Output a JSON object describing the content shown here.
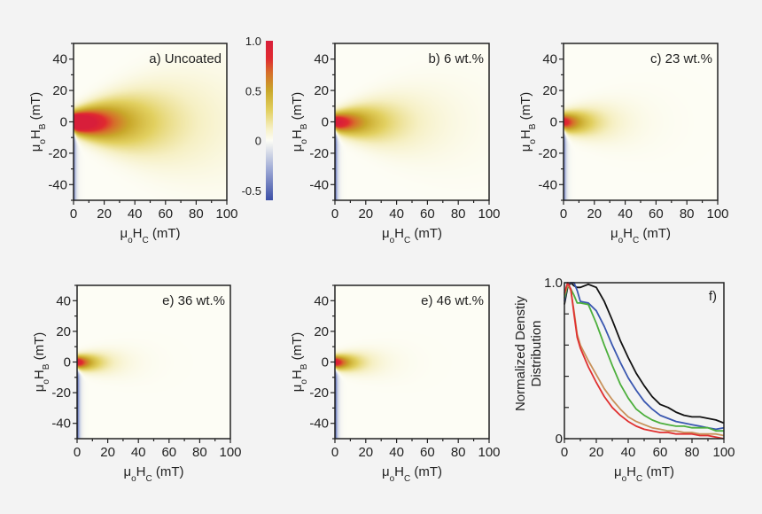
{
  "chart_data": [
    {
      "type": "heatmap",
      "panel": "a",
      "title": "a) Uncoated",
      "xlim": [
        0,
        100
      ],
      "ylim": [
        -50,
        50
      ],
      "xticks": [
        0,
        20,
        40,
        60,
        80,
        100
      ],
      "yticks": [
        40,
        20,
        0,
        -20,
        -40
      ],
      "xlabel": [
        "μ",
        "o",
        "H",
        "C",
        " (mT)"
      ],
      "ylabel": [
        "μ",
        "o",
        "H",
        "B",
        " (mT)"
      ]
    },
    {
      "type": "heatmap",
      "panel": "b",
      "title": "b) 6 wt.%",
      "xlim": [
        0,
        100
      ],
      "ylim": [
        -50,
        50
      ],
      "xticks": [
        0,
        20,
        40,
        60,
        80,
        100
      ],
      "yticks": [
        40,
        20,
        0,
        -20,
        -40
      ],
      "xlabel": [
        "μ",
        "o",
        "H",
        "C",
        " (mT)"
      ],
      "ylabel": [
        "μ",
        "o",
        "H",
        "B",
        " (mT)"
      ]
    },
    {
      "type": "heatmap",
      "panel": "c",
      "title": "c) 23 wt.%",
      "xlim": [
        0,
        100
      ],
      "ylim": [
        -50,
        50
      ],
      "xticks": [
        0,
        20,
        40,
        60,
        80,
        100
      ],
      "yticks": [
        40,
        20,
        0,
        -20,
        -40
      ],
      "xlabel": [
        "μ",
        "o",
        "H",
        "C",
        " (mT)"
      ],
      "ylabel": [
        "μ",
        "o",
        "H",
        "B",
        " (mT)"
      ]
    },
    {
      "type": "heatmap",
      "panel": "d",
      "title": "e) 36 wt.%",
      "xlim": [
        0,
        100
      ],
      "ylim": [
        -50,
        50
      ],
      "xticks": [
        0,
        20,
        40,
        60,
        80,
        100
      ],
      "yticks": [
        40,
        20,
        0,
        -20,
        -40
      ],
      "xlabel": [
        "μ",
        "o",
        "H",
        "C",
        " (mT)"
      ],
      "ylabel": [
        "μ",
        "o",
        "H",
        "B",
        " (mT)"
      ]
    },
    {
      "type": "heatmap",
      "panel": "e",
      "title": "e) 46 wt.%",
      "xlim": [
        0,
        100
      ],
      "ylim": [
        -50,
        50
      ],
      "xticks": [
        0,
        20,
        40,
        60,
        80,
        100
      ],
      "yticks": [
        40,
        20,
        0,
        -20,
        -40
      ],
      "xlabel": [
        "μ",
        "o",
        "H",
        "C",
        " (mT)"
      ],
      "ylabel": [
        "μ",
        "o",
        "H",
        "B",
        " (mT)"
      ]
    },
    {
      "type": "line",
      "panel": "f",
      "title": "f)",
      "xlim": [
        0,
        100
      ],
      "ylim": [
        0,
        1.0
      ],
      "xticks": [
        0,
        20,
        40,
        60,
        80,
        100
      ],
      "yticks": [
        0,
        1.0
      ],
      "ytick_labels": [
        "0",
        "1.0"
      ],
      "xlabel": [
        "μ",
        "o",
        "H",
        "C",
        " (mT)"
      ],
      "ylabel_lines": [
        "Normalized Denstiy",
        "Distribution"
      ],
      "x": [
        0,
        2,
        4,
        6,
        8,
        10,
        15,
        20,
        25,
        30,
        35,
        40,
        45,
        50,
        55,
        60,
        65,
        70,
        75,
        80,
        85,
        90,
        95,
        100
      ],
      "series": [
        {
          "color": "#111111",
          "values": [
            0.86,
            0.97,
            1.0,
            0.98,
            0.97,
            0.97,
            0.99,
            0.97,
            0.88,
            0.76,
            0.63,
            0.52,
            0.42,
            0.34,
            0.27,
            0.22,
            0.2,
            0.17,
            0.15,
            0.14,
            0.14,
            0.13,
            0.12,
            0.1
          ]
        },
        {
          "color": "#3a57b0",
          "values": [
            0.88,
            0.99,
            1.0,
            1.0,
            0.95,
            0.88,
            0.87,
            0.82,
            0.72,
            0.6,
            0.49,
            0.39,
            0.31,
            0.24,
            0.19,
            0.15,
            0.13,
            0.11,
            0.1,
            0.09,
            0.08,
            0.07,
            0.06,
            0.07
          ]
        },
        {
          "color": "#4caf3c",
          "values": [
            0.9,
            0.98,
            0.96,
            0.92,
            0.87,
            0.87,
            0.86,
            0.74,
            0.6,
            0.47,
            0.35,
            0.26,
            0.19,
            0.15,
            0.12,
            0.1,
            0.09,
            0.08,
            0.08,
            0.07,
            0.07,
            0.07,
            0.05,
            0.05
          ]
        },
        {
          "color": "#c8915a",
          "values": [
            0.92,
            0.99,
            0.95,
            0.82,
            0.67,
            0.6,
            0.5,
            0.41,
            0.32,
            0.25,
            0.19,
            0.14,
            0.11,
            0.09,
            0.07,
            0.06,
            0.05,
            0.05,
            0.04,
            0.04,
            0.03,
            0.03,
            0.03,
            0.02
          ]
        },
        {
          "color": "#e03030",
          "values": [
            0.93,
            1.0,
            0.96,
            0.8,
            0.65,
            0.58,
            0.46,
            0.36,
            0.27,
            0.2,
            0.15,
            0.11,
            0.08,
            0.06,
            0.05,
            0.04,
            0.04,
            0.03,
            0.03,
            0.03,
            0.02,
            0.02,
            0.01,
            0.0
          ]
        }
      ]
    }
  ],
  "colorbar": {
    "ticks": [
      "1.0",
      "0.5",
      "0",
      "-0.5"
    ],
    "range": [
      -0.6,
      1.0
    ],
    "colors": {
      "negative": "#3b4ea6",
      "zero": "#ffffff",
      "mid": "#c9a82a",
      "max": "#d81e3a"
    }
  }
}
